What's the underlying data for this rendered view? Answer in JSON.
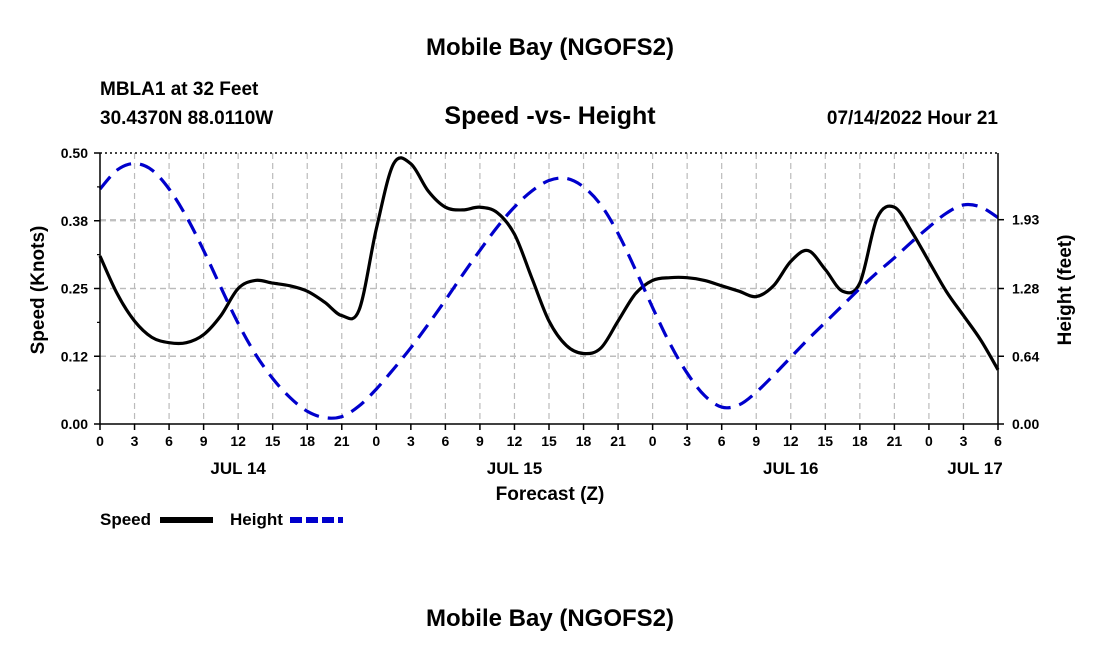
{
  "header": {
    "title": "Mobile Bay (NGOFS2)",
    "station": "MBLA1 at 32 Feet",
    "coords": "30.4370N  88.0110W",
    "subtitle": "Speed -vs- Height",
    "datetime": "07/14/2022 Hour 21"
  },
  "footer": {
    "title": "Mobile Bay (NGOFS2)"
  },
  "legend": {
    "speed_label": "Speed",
    "height_label": "Height"
  },
  "colors": {
    "speed": "#000000",
    "height": "#0000cc",
    "grid": "#bbbbbb"
  },
  "chart_data": {
    "type": "line",
    "title": "Speed -vs- Height",
    "xlabel": "Forecast (Z)",
    "ylabel": "Speed (Knots)",
    "y2label": "Height (feet)",
    "xlim": [
      0,
      78
    ],
    "ylim": [
      0,
      0.5
    ],
    "y2lim": [
      0,
      2.56
    ],
    "x_ticks": [
      0,
      3,
      6,
      9,
      12,
      15,
      18,
      21,
      24,
      27,
      30,
      33,
      36,
      39,
      42,
      45,
      48,
      51,
      54,
      57,
      60,
      63,
      66,
      69,
      72,
      75,
      78
    ],
    "x_tick_labels": [
      "0",
      "3",
      "6",
      "9",
      "12",
      "15",
      "18",
      "21",
      "0",
      "3",
      "6",
      "9",
      "12",
      "15",
      "18",
      "21",
      "0",
      "3",
      "6",
      "9",
      "12",
      "15",
      "18",
      "21",
      "0",
      "3",
      "6"
    ],
    "y_ticks": [
      0,
      0.125,
      0.25,
      0.375,
      0.5
    ],
    "y_tick_labels": [
      "0.00",
      "0.12",
      "0.25",
      "0.38",
      "0.50"
    ],
    "y2_ticks": [
      0,
      0.64,
      1.28,
      1.93
    ],
    "y2_tick_labels": [
      "0.00",
      "0.64",
      "1.28",
      "1.93"
    ],
    "day_labels": [
      {
        "x": 12,
        "label": "JUL 14"
      },
      {
        "x": 36,
        "label": "JUL 15"
      },
      {
        "x": 60,
        "label": "JUL 16"
      },
      {
        "x": 76,
        "label": "JUL 17"
      }
    ],
    "series": [
      {
        "name": "Speed",
        "axis": "left",
        "style": "solid",
        "x": [
          0,
          1.5,
          3,
          4.5,
          6,
          7.5,
          9,
          10.5,
          12,
          13.5,
          15,
          16.5,
          18,
          19.5,
          21,
          22.5,
          24,
          25.5,
          27,
          28.5,
          30,
          31.5,
          33,
          34.5,
          36,
          37.5,
          39,
          40.5,
          42,
          43.5,
          45,
          46.5,
          48,
          49.5,
          51,
          52.5,
          54,
          55.5,
          57,
          58.5,
          60,
          61.5,
          63,
          64.5,
          66,
          67.5,
          69,
          70.5,
          72,
          73.5,
          75,
          76.5,
          78
        ],
        "y": [
          0.31,
          0.24,
          0.19,
          0.16,
          0.15,
          0.15,
          0.165,
          0.2,
          0.25,
          0.265,
          0.26,
          0.255,
          0.245,
          0.225,
          0.2,
          0.21,
          0.36,
          0.48,
          0.48,
          0.43,
          0.4,
          0.395,
          0.4,
          0.39,
          0.35,
          0.27,
          0.19,
          0.145,
          0.13,
          0.14,
          0.19,
          0.24,
          0.265,
          0.27,
          0.27,
          0.265,
          0.255,
          0.245,
          0.235,
          0.255,
          0.3,
          0.32,
          0.285,
          0.245,
          0.26,
          0.38,
          0.4,
          0.355,
          0.3,
          0.245,
          0.2,
          0.155,
          0.1
        ]
      },
      {
        "name": "Height",
        "axis": "right",
        "style": "dashed",
        "x": [
          0,
          1.5,
          3,
          4.5,
          6,
          7.5,
          9,
          10.5,
          12,
          13.5,
          15,
          16.5,
          18,
          19.5,
          21,
          22.5,
          24,
          25.5,
          27,
          28.5,
          30,
          31.5,
          33,
          34.5,
          36,
          37.5,
          39,
          40.5,
          42,
          43.5,
          45,
          46.5,
          48,
          49.5,
          51,
          52.5,
          54,
          55.5,
          57,
          58.5,
          60,
          61.5,
          63,
          64.5,
          66,
          67.5,
          69,
          70.5,
          72,
          73.5,
          75,
          76.5,
          78
        ],
        "y": [
          2.22,
          2.4,
          2.46,
          2.4,
          2.22,
          1.96,
          1.64,
          1.29,
          0.95,
          0.66,
          0.43,
          0.25,
          0.12,
          0.06,
          0.07,
          0.17,
          0.33,
          0.52,
          0.72,
          0.94,
          1.17,
          1.41,
          1.64,
          1.86,
          2.05,
          2.2,
          2.3,
          2.32,
          2.24,
          2.07,
          1.8,
          1.46,
          1.1,
          0.76,
          0.48,
          0.27,
          0.16,
          0.18,
          0.3,
          0.46,
          0.63,
          0.8,
          0.96,
          1.12,
          1.28,
          1.43,
          1.57,
          1.72,
          1.86,
          1.99,
          2.07,
          2.05,
          1.95
        ]
      }
    ]
  }
}
